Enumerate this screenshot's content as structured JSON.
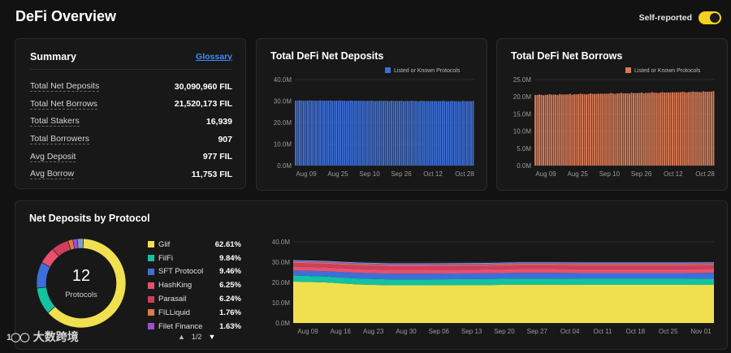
{
  "header": {
    "title": "DeFi Overview",
    "toggle_label": "Self-reported",
    "toggle_on": true
  },
  "summary": {
    "title": "Summary",
    "glossary": "Glossary",
    "rows": [
      {
        "label": "Total Net Deposits",
        "value": "30,090,960 FIL"
      },
      {
        "label": "Total Net Borrows",
        "value": "21,520,173 FIL"
      },
      {
        "label": "Total Stakers",
        "value": "16,939"
      },
      {
        "label": "Total Borrowers",
        "value": "907"
      },
      {
        "label": "Avg Deposit",
        "value": "977 FIL"
      },
      {
        "label": "Avg Borrow",
        "value": "11,753 FIL"
      }
    ]
  },
  "deposits": {
    "title": "Total DeFi Net Deposits",
    "legend": "Listed or Known Protocols",
    "color": "#3d6fd9",
    "yticks": [
      "0.0M",
      "10.0M",
      "20.0M",
      "30.0M",
      "40.0M"
    ],
    "xticks": [
      "Aug 09",
      "Aug 25",
      "Sep 10",
      "Sep 26",
      "Oct 12",
      "Oct 28"
    ]
  },
  "borrows": {
    "title": "Total DeFi Net Borrows",
    "legend": "Listed or Known Protocols",
    "color": "#d97a55",
    "yticks": [
      "0.0M",
      "5.0M",
      "10.0M",
      "15.0M",
      "20.0M",
      "25.0M"
    ],
    "xticks": [
      "Aug 09",
      "Aug 25",
      "Sep 10",
      "Sep 26",
      "Oct 12",
      "Oct 28"
    ]
  },
  "protocols": {
    "title": "Net Deposits by Protocol",
    "count": "12",
    "count_label": "Protocols",
    "items": [
      {
        "name": "Glif",
        "pct": "62.61%",
        "color": "#f0e050"
      },
      {
        "name": "FilFi",
        "pct": "9.84%",
        "color": "#12c2a0"
      },
      {
        "name": "SFT Protocol",
        "pct": "9.46%",
        "color": "#3d6fd9"
      },
      {
        "name": "HashKing",
        "pct": "6.25%",
        "color": "#e8506e"
      },
      {
        "name": "Parasail",
        "pct": "6.24%",
        "color": "#cf3f5a"
      },
      {
        "name": "FILLiquid",
        "pct": "1.76%",
        "color": "#e07a4a"
      },
      {
        "name": "Filet Finance",
        "pct": "1.63%",
        "color": "#a14fd0"
      }
    ],
    "pager": "1/2",
    "yticks": [
      "0.0M",
      "10.0M",
      "20.0M",
      "30.0M",
      "40.0M"
    ],
    "xticks": [
      "Aug 09",
      "Aug 16",
      "Aug 23",
      "Aug 30",
      "Sep 06",
      "Sep 13",
      "Sep 20",
      "Sep 27",
      "Oct 04",
      "Oct 11",
      "Oct 18",
      "Oct 25",
      "Nov 01"
    ]
  },
  "chart_data": [
    {
      "type": "bar",
      "title": "Total DeFi Net Deposits",
      "ylim": [
        0,
        40
      ],
      "unit": "M",
      "series": [
        {
          "name": "Listed or Known Protocols",
          "start": 30.2,
          "end": 29.8,
          "count": 88
        }
      ]
    },
    {
      "type": "bar",
      "title": "Total DeFi Net Borrows",
      "ylim": [
        0,
        25
      ],
      "unit": "M",
      "series": [
        {
          "name": "Listed or Known Protocols",
          "start": 20.5,
          "end": 21.5,
          "count": 88
        }
      ]
    },
    {
      "type": "area",
      "title": "Net Deposits by Protocol",
      "ylim": [
        0,
        40
      ],
      "unit": "M",
      "series": [
        {
          "name": "Glif",
          "values": [
            20.4,
            20.0,
            19.0,
            18.6,
            18.6,
            18.7,
            18.7,
            18.9,
            18.9,
            18.8,
            18.8,
            18.8,
            18.8,
            18.9
          ]
        },
        {
          "name": "FilFi",
          "values": [
            3.0,
            2.9,
            2.9,
            2.9,
            2.9,
            2.9,
            3.0,
            3.0,
            3.0,
            3.0,
            3.0,
            3.0,
            3.0,
            3.0
          ]
        },
        {
          "name": "SFT Protocol",
          "values": [
            2.5,
            2.6,
            2.8,
            2.8,
            2.8,
            2.8,
            2.8,
            2.8,
            2.8,
            2.8,
            2.8,
            2.8,
            2.8,
            2.8
          ]
        },
        {
          "name": "HashKing",
          "values": [
            1.9,
            1.9,
            1.9,
            1.9,
            1.9,
            1.9,
            1.9,
            1.9,
            1.9,
            1.9,
            1.9,
            1.9,
            1.9,
            1.9
          ]
        },
        {
          "name": "Parasail",
          "values": [
            1.8,
            1.8,
            1.8,
            1.8,
            1.8,
            1.8,
            1.8,
            1.9,
            1.9,
            1.9,
            1.9,
            1.9,
            1.9,
            1.9
          ]
        },
        {
          "name": "FILLiquid",
          "values": [
            0.5,
            0.5,
            0.5,
            0.5,
            0.5,
            0.5,
            0.5,
            0.5,
            0.5,
            0.5,
            0.5,
            0.5,
            0.5,
            0.5
          ]
        },
        {
          "name": "Filet Finance",
          "values": [
            0.5,
            0.5,
            0.5,
            0.5,
            0.5,
            0.5,
            0.5,
            0.5,
            0.5,
            0.5,
            0.5,
            0.5,
            0.5,
            0.5
          ]
        }
      ]
    }
  ],
  "watermark": {
    "logo": "1◯◯",
    "text": "大数跨境"
  }
}
